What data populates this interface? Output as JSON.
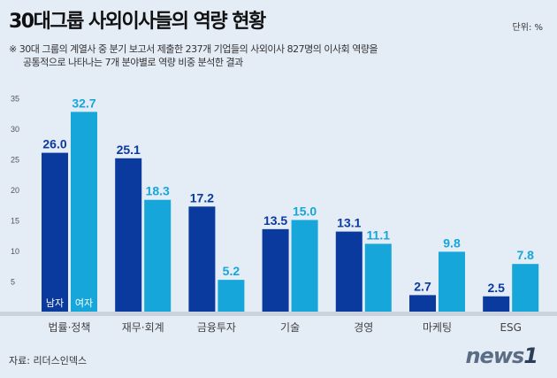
{
  "title": "30대그룹 사외이사들의 역량 현황",
  "unit": "단위: %",
  "note_line1": "※ 30대 그룹의 계열사 중 분기 보고서 제출한 237개 기업들의 사외이사 827명의 이사회 역량을",
  "note_line2": "공통적으로 나타나는 7개 분야별로 역량 비중 분석한 결과",
  "source": "자료: 리더스인덱스",
  "logo": "news1",
  "colors": {
    "male": "#0b3a9f",
    "female": "#16a6da",
    "background": "#e4ecf6"
  },
  "chart_data": {
    "type": "bar",
    "categories": [
      "법률·정책",
      "재무·회계",
      "금융투자",
      "기술",
      "경영",
      "마케팅",
      "ESG"
    ],
    "series": [
      {
        "name": "남자",
        "values": [
          26.0,
          25.1,
          17.2,
          13.5,
          13.1,
          2.7,
          2.5
        ]
      },
      {
        "name": "여자",
        "values": [
          32.7,
          18.3,
          5.2,
          15.0,
          11.1,
          9.8,
          7.8
        ]
      }
    ],
    "yticks": [
      5,
      10,
      15,
      20,
      25,
      30,
      35
    ],
    "ylim": [
      0,
      36
    ],
    "grid": false,
    "legend": "inside-first-bars"
  }
}
